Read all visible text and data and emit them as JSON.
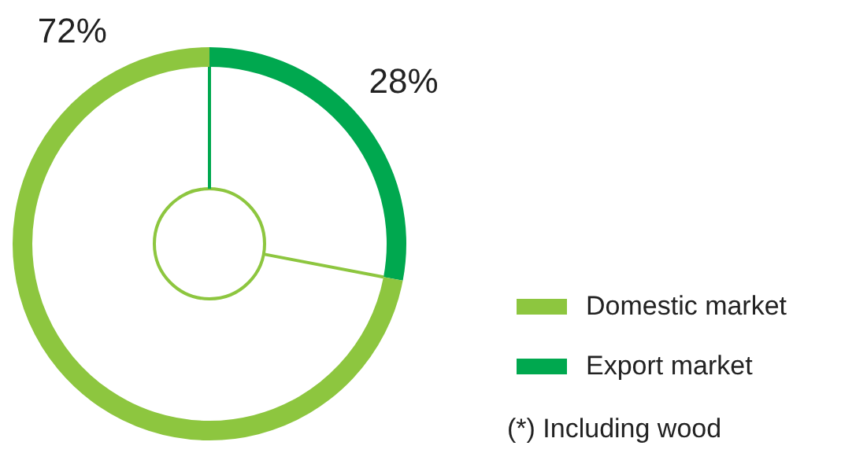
{
  "chart_data": {
    "type": "donut",
    "categories": [
      "Export market",
      "Domestic market"
    ],
    "values": [
      28,
      72
    ],
    "colors": [
      "#00a84f",
      "#8dc63f"
    ],
    "value_labels": [
      "28%",
      "72%"
    ],
    "legend": "bottom right",
    "annotations": [
      "(*) Including wood"
    ]
  }
}
